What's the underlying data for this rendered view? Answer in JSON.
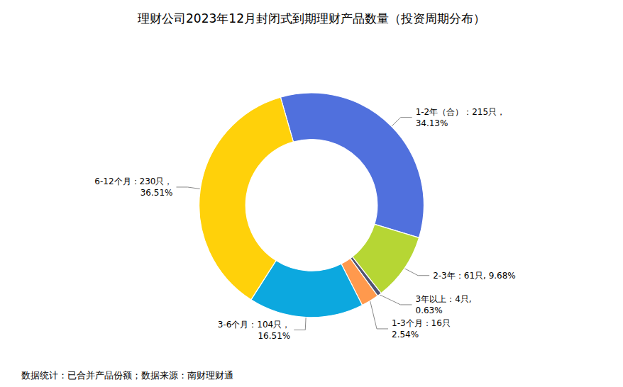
{
  "chart_data": {
    "type": "pie",
    "title": "理财公司2023年12月封闭式到期理财产品数量（投资周期分布）",
    "annotations": [
      "数据统计：已合并产品份额；数据来源：南财理财通"
    ],
    "categories": [
      "1-2年（合）：215只，\n34.13%",
      "2-3年：61只, 9.68%",
      "3年以上：4只,\n0.63%",
      "1-3个月：16只\n2.54%",
      "3-6个月：104只，\n16.51%",
      "6-12个月：230只，\n36.51%"
    ],
    "values": [
      34.13,
      9.68,
      0.63,
      2.54,
      16.51,
      36.51
    ]
  }
}
